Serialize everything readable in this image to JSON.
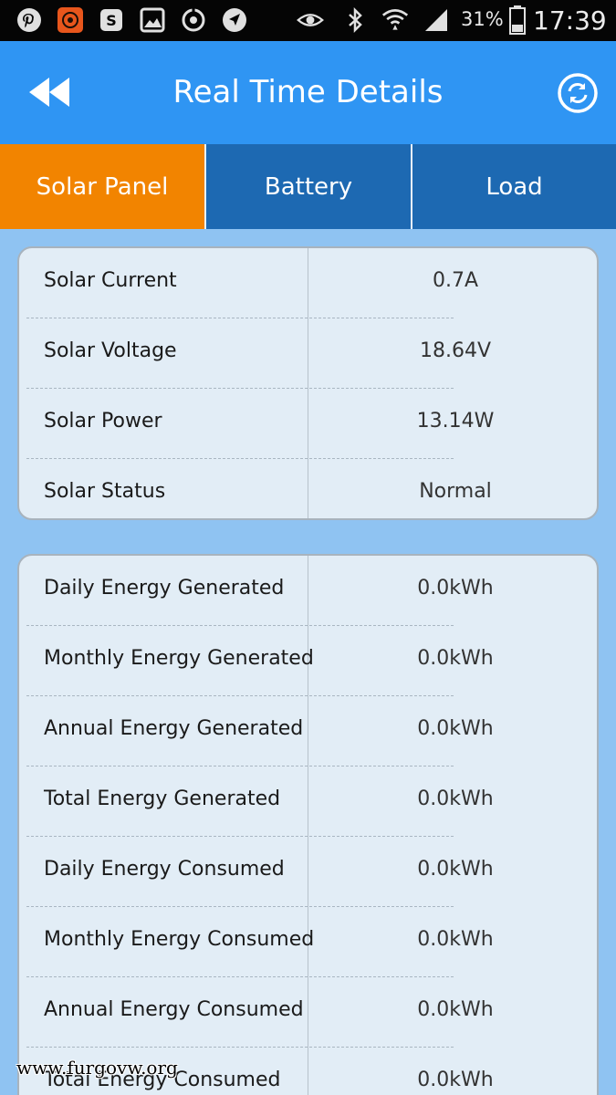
{
  "status_bar": {
    "battery_percent": "31%",
    "time": "17:39",
    "left_icons": [
      "pinterest-icon",
      "app-badge-icon",
      "skype-icon",
      "gallery-icon",
      "sync-icon",
      "navigation-icon"
    ],
    "right_icons": [
      "eye-icon",
      "bluetooth-icon",
      "wifi-icon",
      "signal-icon",
      "battery-icon"
    ]
  },
  "header": {
    "title": "Real Time Details",
    "back_icon": "rewind-back-icon",
    "refresh_icon": "refresh-icon"
  },
  "tabs": [
    {
      "label": "Solar Panel",
      "active": true
    },
    {
      "label": "Battery",
      "active": false
    },
    {
      "label": "Load",
      "active": false
    }
  ],
  "solar_card": {
    "rows": [
      {
        "label": "Solar Current",
        "value": "0.7A"
      },
      {
        "label": "Solar Voltage",
        "value": "18.64V"
      },
      {
        "label": "Solar Power",
        "value": "13.14W"
      },
      {
        "label": "Solar Status",
        "value": "Normal"
      }
    ]
  },
  "energy_card": {
    "rows": [
      {
        "label": "Daily Energy Generated",
        "value": "0.0kWh"
      },
      {
        "label": "Monthly Energy Generated",
        "value": "0.0kWh"
      },
      {
        "label": "Annual Energy Generated",
        "value": "0.0kWh"
      },
      {
        "label": "Total Energy Generated",
        "value": "0.0kWh"
      },
      {
        "label": "Daily Energy Consumed",
        "value": "0.0kWh"
      },
      {
        "label": "Monthly Energy Consumed",
        "value": "0.0kWh"
      },
      {
        "label": "Annual Energy Consumed",
        "value": "0.0kWh"
      },
      {
        "label": "Total Energy Consumed",
        "value": "0.0kWh"
      }
    ]
  },
  "watermark": "www.furgovw.org",
  "colors": {
    "header_bg": "#2f95f3",
    "tab_active": "#f28400",
    "tab_inactive": "#1d69b2",
    "page_bg": "#8fc3f2",
    "card_bg": "#e2edf6"
  }
}
